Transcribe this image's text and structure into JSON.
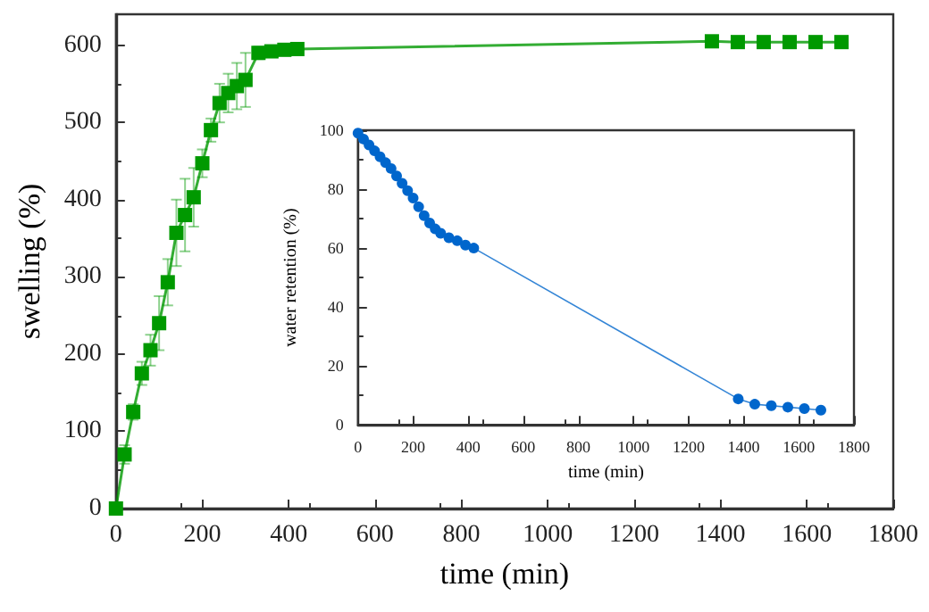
{
  "chart_data": [
    {
      "type": "line",
      "xlabel": "time (min)",
      "ylabel": "swelling (%)",
      "marker": "square",
      "line_style": "solid",
      "x": [
        0,
        20,
        40,
        60,
        80,
        100,
        120,
        140,
        160,
        180,
        200,
        220,
        240,
        260,
        280,
        300,
        330,
        360,
        390,
        420,
        1380,
        1440,
        1500,
        1560,
        1620,
        1680
      ],
      "series": [
        {
          "color": "#009900",
          "values": [
            0,
            70,
            125,
            175,
            205,
            240,
            293,
            357,
            380,
            403,
            447,
            490,
            525,
            538,
            547,
            555,
            590,
            592,
            594,
            595,
            605,
            604,
            604,
            604,
            604,
            604
          ],
          "errors": [
            null,
            12,
            10,
            15,
            20,
            35,
            30,
            43,
            47,
            38,
            18,
            15,
            25,
            25,
            30,
            35,
            8,
            5,
            5,
            5,
            5,
            5,
            5,
            5,
            5,
            5
          ]
        }
      ],
      "xlim": [
        0,
        1800
      ],
      "ylim": [
        0,
        640
      ],
      "xticks": [
        0,
        200,
        400,
        600,
        800,
        1000,
        1200,
        1400,
        1600,
        1800
      ],
      "yticks": [
        0,
        100,
        200,
        300,
        400,
        500,
        600
      ]
    },
    {
      "type": "line",
      "xlabel": "time (min)",
      "ylabel": "water retention (%)",
      "marker": "circle",
      "line_style": "solid",
      "x": [
        0,
        20,
        40,
        60,
        80,
        100,
        120,
        140,
        160,
        180,
        200,
        220,
        240,
        260,
        280,
        300,
        330,
        360,
        390,
        420,
        1380,
        1440,
        1500,
        1560,
        1620,
        1680
      ],
      "series": [
        {
          "color": "#0066cc",
          "values": [
            99,
            97,
            95,
            93,
            91,
            89,
            87,
            84.5,
            82,
            79.5,
            77,
            74,
            71,
            68.5,
            66.5,
            65,
            63.5,
            62.5,
            61,
            60,
            8.8,
            7,
            6.5,
            6,
            5.5,
            5
          ]
        }
      ],
      "xlim": [
        0,
        1800
      ],
      "ylim": [
        0,
        100
      ],
      "xticks": [
        0,
        200,
        400,
        600,
        800,
        1000,
        1200,
        1400,
        1600,
        1800
      ],
      "yticks": [
        0,
        20,
        40,
        60,
        80,
        100
      ]
    }
  ]
}
